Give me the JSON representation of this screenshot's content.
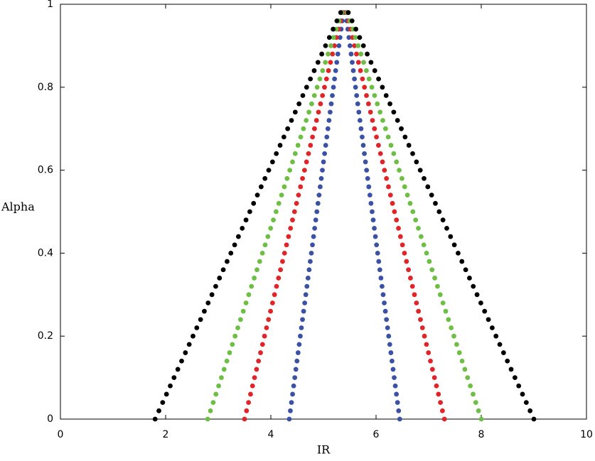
{
  "chart_data": {
    "type": "scatter",
    "xlabel": "IR",
    "ylabel": "Alpha",
    "xlim": [
      0,
      10
    ],
    "ylim": [
      0,
      1
    ],
    "xticks": [
      0,
      2,
      4,
      6,
      8,
      10
    ],
    "yticks": [
      0,
      0.2,
      0.4,
      0.6,
      0.8,
      1
    ],
    "y": [
      0,
      0.02,
      0.04,
      0.06,
      0.08,
      0.1,
      0.12,
      0.14,
      0.16,
      0.18,
      0.2,
      0.22,
      0.24,
      0.26,
      0.28,
      0.3,
      0.32,
      0.34,
      0.36,
      0.38,
      0.4,
      0.42,
      0.44,
      0.46,
      0.48,
      0.5,
      0.52,
      0.54,
      0.56,
      0.58,
      0.6,
      0.62,
      0.64,
      0.66,
      0.68,
      0.7,
      0.72,
      0.74,
      0.76,
      0.78,
      0.8,
      0.82,
      0.84,
      0.86,
      0.88,
      0.9,
      0.92,
      0.94,
      0.96,
      0.98
    ],
    "series": [
      {
        "color": "#3b52a4",
        "x_left": [
          4.35,
          4.371,
          4.392,
          4.413,
          4.434,
          4.455,
          4.476,
          4.497,
          4.518,
          4.539,
          4.56,
          4.581,
          4.602,
          4.623,
          4.644,
          4.665,
          4.686,
          4.707,
          4.728,
          4.749,
          4.77,
          4.791,
          4.812,
          4.833,
          4.854,
          4.875,
          4.896,
          4.917,
          4.938,
          4.959,
          4.98,
          5.001,
          5.022,
          5.043,
          5.064,
          5.085,
          5.106,
          5.127,
          5.148,
          5.169,
          5.19,
          5.211,
          5.232,
          5.253,
          5.274,
          5.295,
          5.316,
          5.337,
          5.358,
          5.379
        ],
        "x_right": [
          6.45,
          6.429,
          6.408,
          6.387,
          6.366,
          6.345,
          6.324,
          6.303,
          6.282,
          6.261,
          6.24,
          6.219,
          6.198,
          6.177,
          6.156,
          6.135,
          6.114,
          6.093,
          6.072,
          6.051,
          6.03,
          6.009,
          5.988,
          5.967,
          5.946,
          5.925,
          5.904,
          5.883,
          5.862,
          5.841,
          5.82,
          5.799,
          5.778,
          5.757,
          5.736,
          5.715,
          5.694,
          5.673,
          5.652,
          5.631,
          5.61,
          5.589,
          5.568,
          5.547,
          5.526,
          5.505,
          5.484,
          5.463,
          5.442,
          5.421
        ]
      },
      {
        "color": "#e02427",
        "x_left": [
          3.5,
          3.538,
          3.576,
          3.614,
          3.652,
          3.69,
          3.728,
          3.766,
          3.804,
          3.842,
          3.88,
          3.918,
          3.956,
          3.994,
          4.032,
          4.07,
          4.108,
          4.146,
          4.184,
          4.222,
          4.26,
          4.298,
          4.336,
          4.374,
          4.412,
          4.45,
          4.488,
          4.526,
          4.564,
          4.602,
          4.64,
          4.678,
          4.716,
          4.754,
          4.792,
          4.83,
          4.868,
          4.906,
          4.944,
          4.982,
          5.02,
          5.058,
          5.096,
          5.134,
          5.172,
          5.21,
          5.248,
          5.286,
          5.324,
          5.362
        ],
        "x_right": [
          7.3,
          7.262,
          7.224,
          7.186,
          7.148,
          7.11,
          7.072,
          7.034,
          6.996,
          6.958,
          6.92,
          6.882,
          6.844,
          6.806,
          6.768,
          6.73,
          6.692,
          6.654,
          6.616,
          6.578,
          6.54,
          6.502,
          6.464,
          6.426,
          6.388,
          6.35,
          6.312,
          6.274,
          6.236,
          6.198,
          6.16,
          6.122,
          6.084,
          6.046,
          6.008,
          5.97,
          5.932,
          5.894,
          5.856,
          5.818,
          5.78,
          5.742,
          5.704,
          5.666,
          5.628,
          5.59,
          5.552,
          5.514,
          5.476,
          5.438
        ]
      },
      {
        "color": "#6dbf44",
        "x_left": [
          2.8,
          2.852,
          2.904,
          2.956,
          3.008,
          3.06,
          3.112,
          3.164,
          3.216,
          3.268,
          3.32,
          3.372,
          3.424,
          3.476,
          3.528,
          3.58,
          3.632,
          3.684,
          3.736,
          3.788,
          3.84,
          3.892,
          3.944,
          3.996,
          4.048,
          4.1,
          4.152,
          4.204,
          4.256,
          4.308,
          4.36,
          4.412,
          4.464,
          4.516,
          4.568,
          4.62,
          4.672,
          4.724,
          4.776,
          4.828,
          4.88,
          4.932,
          4.984,
          5.036,
          5.088,
          5.14,
          5.192,
          5.244,
          5.296,
          5.348
        ],
        "x_right": [
          8,
          7.948,
          7.896,
          7.844,
          7.792,
          7.74,
          7.688,
          7.636,
          7.584,
          7.532,
          7.48,
          7.428,
          7.376,
          7.324,
          7.272,
          7.22,
          7.168,
          7.116,
          7.064,
          7.012,
          6.96,
          6.908,
          6.856,
          6.804,
          6.752,
          6.7,
          6.648,
          6.596,
          6.544,
          6.492,
          6.44,
          6.388,
          6.336,
          6.284,
          6.232,
          6.18,
          6.128,
          6.076,
          6.024,
          5.972,
          5.92,
          5.868,
          5.816,
          5.764,
          5.712,
          5.66,
          5.608,
          5.556,
          5.504,
          5.452
        ]
      },
      {
        "color": "#000000",
        "x_left": [
          1.8,
          1.872,
          1.944,
          2.016,
          2.088,
          2.16,
          2.232,
          2.304,
          2.376,
          2.448,
          2.52,
          2.592,
          2.664,
          2.736,
          2.808,
          2.88,
          2.952,
          3.024,
          3.096,
          3.168,
          3.24,
          3.312,
          3.384,
          3.456,
          3.528,
          3.6,
          3.672,
          3.744,
          3.816,
          3.888,
          3.96,
          4.032,
          4.104,
          4.176,
          4.248,
          4.32,
          4.392,
          4.464,
          4.536,
          4.608,
          4.68,
          4.752,
          4.824,
          4.896,
          4.968,
          5.04,
          5.112,
          5.184,
          5.256,
          5.328
        ],
        "x_right": [
          9,
          8.928,
          8.856,
          8.784,
          8.712,
          8.64,
          8.568,
          8.496,
          8.424,
          8.352,
          8.28,
          8.208,
          8.136,
          8.064,
          7.992,
          7.92,
          7.848,
          7.776,
          7.704,
          7.632,
          7.56,
          7.488,
          7.416,
          7.344,
          7.272,
          7.2,
          7.128,
          7.056,
          6.984,
          6.912,
          6.84,
          6.768,
          6.696,
          6.624,
          6.552,
          6.48,
          6.408,
          6.336,
          6.264,
          6.192,
          6.12,
          6.048,
          5.976,
          5.904,
          5.832,
          5.76,
          5.688,
          5.616,
          5.544,
          5.472
        ]
      }
    ]
  }
}
